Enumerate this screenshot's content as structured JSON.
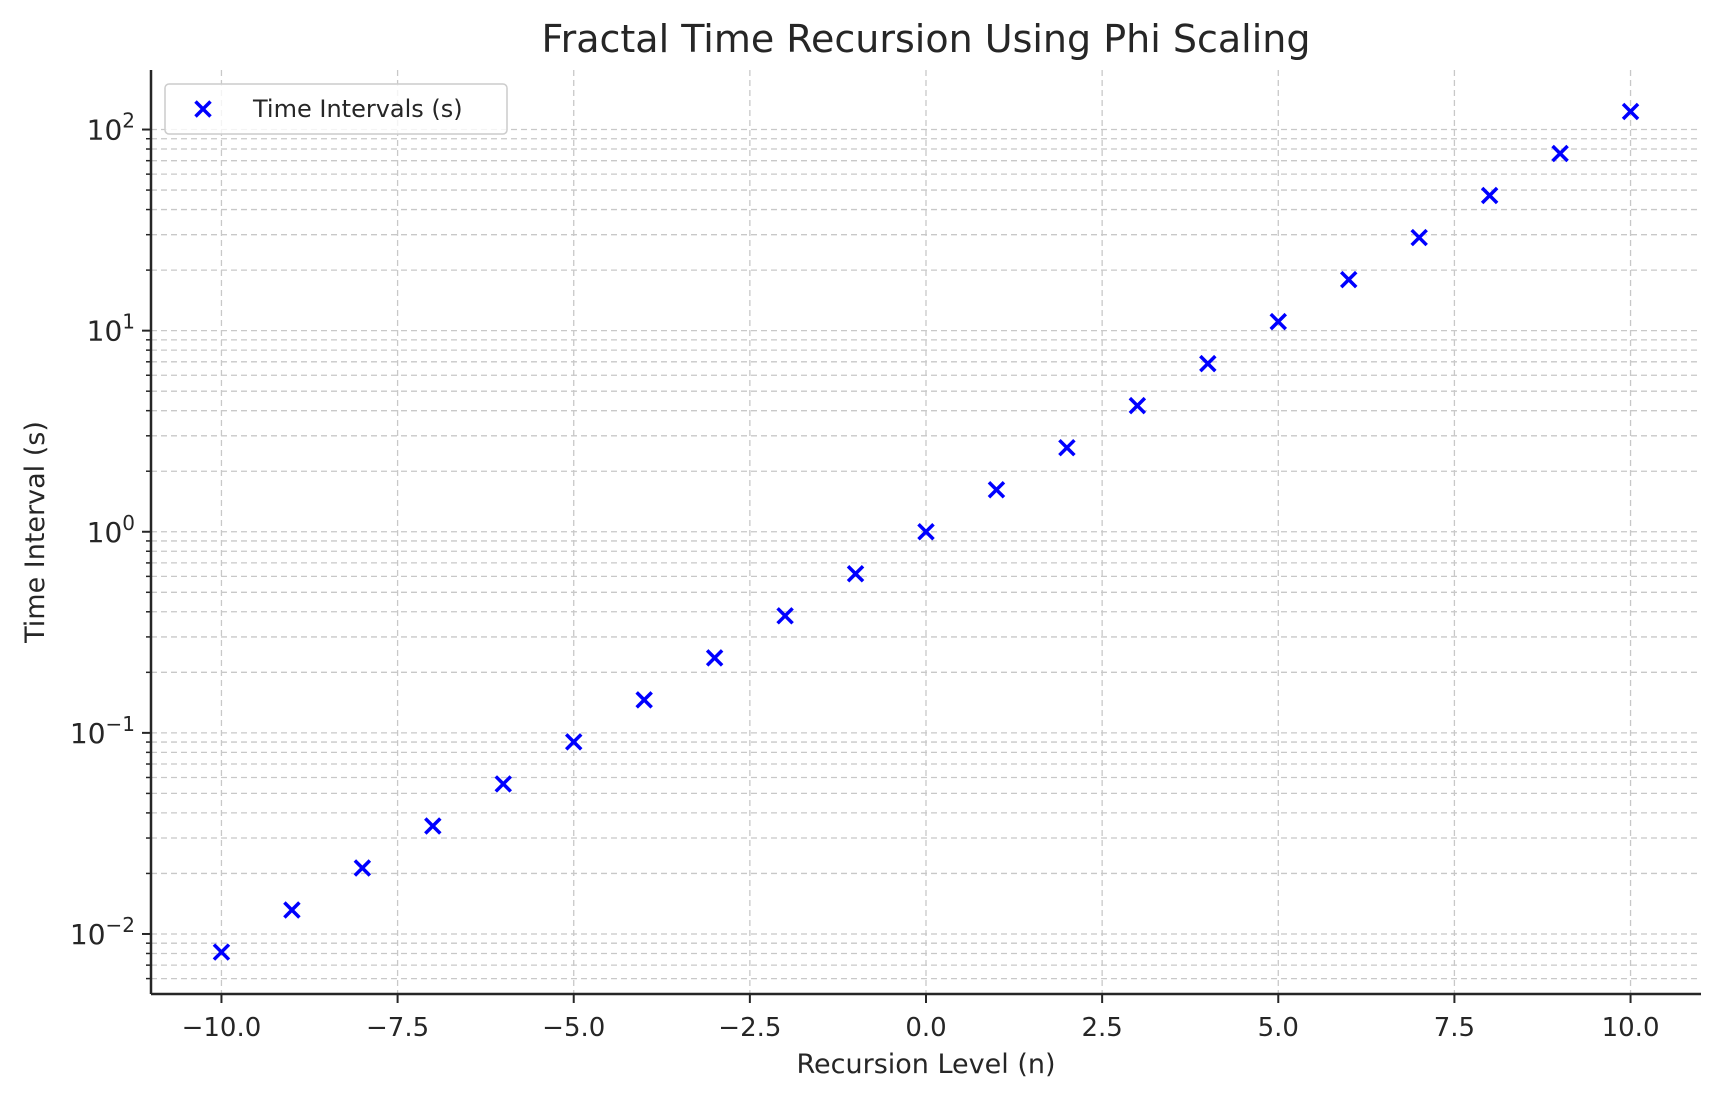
{
  "chart_data": {
    "type": "scatter",
    "title": "Fractal Time Recursion Using Phi Scaling",
    "xlabel": "Recursion Level (n)",
    "ylabel": "Time Interval (s)",
    "xscale": "linear",
    "yscale": "log",
    "xlim": [
      -11,
      11
    ],
    "ylim": [
      0.00503,
      197.7
    ],
    "xticks": [
      -10,
      -7.5,
      -5,
      -2.5,
      0,
      2.5,
      5,
      7.5,
      10
    ],
    "xtick_labels": [
      "−10.0",
      "−7.5",
      "−5.0",
      "−2.5",
      "0.0",
      "2.5",
      "5.0",
      "7.5",
      "10.0"
    ],
    "yticks": [
      0.01,
      0.1,
      1,
      10,
      100
    ],
    "ytick_labels": [
      {
        "base": "10",
        "exp": "−2"
      },
      {
        "base": "10",
        "exp": "−1"
      },
      {
        "base": "10",
        "exp": "0"
      },
      {
        "base": "10",
        "exp": "1"
      },
      {
        "base": "10",
        "exp": "2"
      }
    ],
    "grid": true,
    "legend_position": "top-left",
    "series": [
      {
        "name": "Time Intervals (s)",
        "marker": "x",
        "color": "#0000ff",
        "x": [
          -10,
          -9,
          -8,
          -7,
          -6,
          -5,
          -4,
          -3,
          -2,
          -1,
          0,
          1,
          2,
          3,
          4,
          5,
          6,
          7,
          8,
          9,
          10
        ],
        "y": [
          0.00813,
          0.01316,
          0.02129,
          0.03444,
          0.05573,
          0.09017,
          0.1459,
          0.2361,
          0.382,
          0.618,
          1,
          1.618,
          2.618,
          4.236,
          6.854,
          11.09,
          17.94,
          29.03,
          46.98,
          76.01,
          122.99
        ]
      }
    ]
  }
}
